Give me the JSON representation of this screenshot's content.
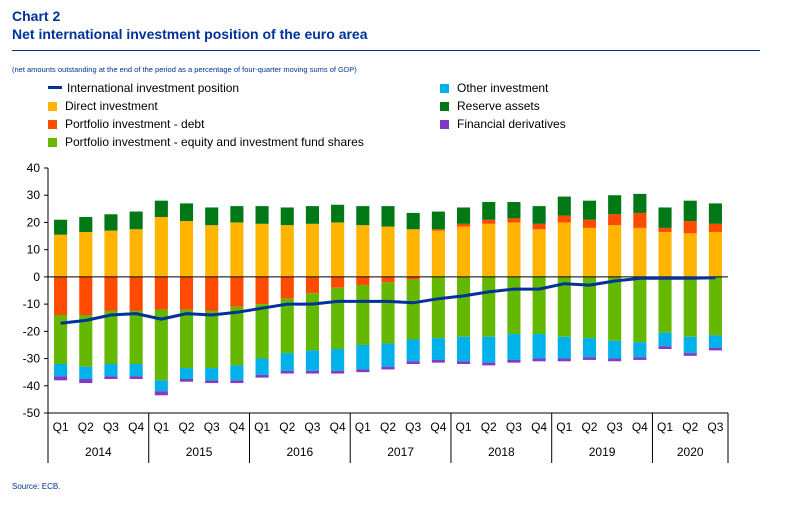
{
  "header": {
    "chart_no": "Chart 2",
    "title": "Net international investment position of the euro area",
    "subtitle": "(net amounts outstanding at the end of the period as a percentage of four-quarter moving sums of GDP)"
  },
  "legend": [
    {
      "label": "International investment position",
      "color": "#003299",
      "kind": "line"
    },
    {
      "label": "Direct investment",
      "color": "#FFB400",
      "kind": "box"
    },
    {
      "label": "Portfolio investment - debt",
      "color": "#FF4B00",
      "kind": "box"
    },
    {
      "label": "Portfolio investment - equity and investment fund shares",
      "color": "#65B800",
      "kind": "box"
    },
    {
      "label": "Other investment",
      "color": "#00B1EA",
      "kind": "box"
    },
    {
      "label": "Reserve assets",
      "color": "#007816",
      "kind": "box"
    },
    {
      "label": "Financial derivatives",
      "color": "#8139C6",
      "kind": "box"
    }
  ],
  "source": "Source: ECB.",
  "chart_data": {
    "type": "bar",
    "stacked": true,
    "quarters": [
      "Q1",
      "Q2",
      "Q3",
      "Q4",
      "Q1",
      "Q2",
      "Q3",
      "Q4",
      "Q1",
      "Q2",
      "Q3",
      "Q4",
      "Q1",
      "Q2",
      "Q3",
      "Q4",
      "Q1",
      "Q2",
      "Q3",
      "Q4",
      "Q1",
      "Q2",
      "Q3",
      "Q4",
      "Q1",
      "Q2",
      "Q3"
    ],
    "years": [
      {
        "label": "2014",
        "span": 4
      },
      {
        "label": "2015",
        "span": 4
      },
      {
        "label": "2016",
        "span": 4
      },
      {
        "label": "2017",
        "span": 4
      },
      {
        "label": "2018",
        "span": 4
      },
      {
        "label": "2019",
        "span": 4
      },
      {
        "label": "2020",
        "span": 3
      }
    ],
    "ylim": [
      -50,
      40
    ],
    "yticks": [
      40,
      30,
      20,
      10,
      0,
      -10,
      -20,
      -30,
      -40,
      -50
    ],
    "grid": false,
    "legend_position": "top",
    "series": [
      {
        "name": "Direct investment",
        "color": "#FFB400",
        "values": [
          15.5,
          16.5,
          17,
          17.5,
          22,
          20.5,
          19,
          20,
          19.5,
          19,
          19.5,
          20,
          19,
          18.5,
          17.5,
          17,
          18.5,
          19.5,
          20,
          17.5,
          20,
          18,
          19,
          18,
          16.5,
          16,
          16.5
        ]
      },
      {
        "name": "Portfolio investment - debt",
        "color": "#FF4B00",
        "values": [
          -14,
          -14,
          -12.5,
          -12.5,
          -12,
          -12,
          -12.5,
          -11,
          -10,
          -8,
          -6,
          -4,
          -3,
          -2,
          -1,
          0.5,
          1,
          1.5,
          1.5,
          2,
          2.5,
          3,
          4,
          5.5,
          1.5,
          4.5,
          3
        ]
      },
      {
        "name": "Portfolio investment - equity and investment fund shares",
        "color": "#65B800",
        "values": [
          -18,
          -19,
          -19.5,
          -19.5,
          -26,
          -21.5,
          -21,
          -21.5,
          -20,
          -20,
          -21,
          -22.5,
          -22,
          -22.5,
          -22,
          -22.5,
          -22,
          -22,
          -21,
          -21,
          -22,
          -22.5,
          -23.5,
          -24,
          -20.5,
          -22,
          -21.5
        ]
      },
      {
        "name": "Other investment",
        "color": "#00B1EA",
        "values": [
          -4.5,
          -4.5,
          -4.5,
          -4.5,
          -4,
          -4,
          -4.5,
          -5.5,
          -6,
          -6.5,
          -7.5,
          -8,
          -9,
          -8.5,
          -8,
          -8,
          -9,
          -9.5,
          -9.5,
          -9,
          -8,
          -7,
          -6.5,
          -5.5,
          -5,
          -6,
          -4.5
        ]
      },
      {
        "name": "Reserve assets",
        "color": "#007816",
        "values": [
          5.5,
          5.5,
          6,
          6.5,
          6,
          6.5,
          6.5,
          6,
          6.5,
          6.5,
          6.5,
          6.5,
          7,
          7.5,
          6,
          6.5,
          6,
          6.5,
          6,
          6.5,
          7,
          7,
          7,
          7,
          7.5,
          7.5,
          7.5
        ]
      },
      {
        "name": "Financial derivatives",
        "color": "#8139C6",
        "values": [
          -1.5,
          -1.5,
          -1,
          -1,
          -1.5,
          -1,
          -1,
          -1,
          -1,
          -1,
          -1,
          -1,
          -1,
          -1,
          -1,
          -1,
          -1,
          -1,
          -1,
          -1,
          -1,
          -1,
          -1,
          -1,
          -1,
          -1,
          -1
        ]
      }
    ],
    "line": {
      "name": "International investment position",
      "color": "#003299",
      "values": [
        -17,
        -16,
        -14,
        -13.5,
        -15.5,
        -13.5,
        -14,
        -13,
        -11.5,
        -10,
        -10,
        -9,
        -9,
        -9,
        -9.5,
        -8,
        -7,
        -5.5,
        -4.5,
        -4.5,
        -2.5,
        -3,
        -1.5,
        -0.5,
        -0.5,
        -0.5,
        -0.3
      ]
    }
  }
}
